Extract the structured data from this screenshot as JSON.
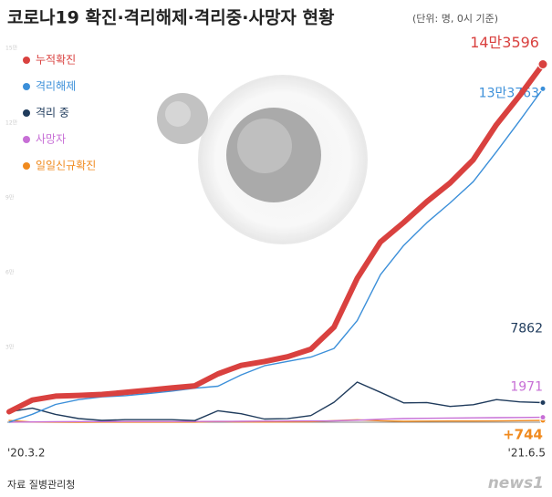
{
  "chart_data": {
    "type": "line",
    "title": "코로나19 확진·격리해제·격리중·사망자 현황",
    "subtitle": "(단위: 명, 0시 기준)",
    "source": "자료 질병관리청",
    "watermark": "news1",
    "categories": [
      "'20.3.2",
      null,
      null,
      null,
      null,
      null,
      null,
      null,
      null,
      null,
      null,
      null,
      null,
      null,
      null,
      null,
      null,
      null,
      null,
      null,
      null,
      null,
      null,
      "'21.6.5"
    ],
    "ylim": [
      0,
      150000
    ],
    "yticks": [
      {
        "value": 30000,
        "label": "3만"
      },
      {
        "value": 60000,
        "label": "6만"
      },
      {
        "value": 90000,
        "label": "9만"
      },
      {
        "value": 120000,
        "label": "12만"
      },
      {
        "value": 150000,
        "label": "15만"
      }
    ],
    "series": [
      {
        "name": "누적확진",
        "color": "#d9413f",
        "values": [
          4212,
          8897,
          10480,
          10774,
          11142,
          11947,
          12850,
          13771,
          14598,
          19400,
          22783,
          24353,
          26271,
          29311,
          38161,
          57680,
          72340,
          80131,
          88516,
          96017,
          105279,
          119387,
          131061,
          143596
        ],
        "value_labels": [
          null,
          null,
          null,
          null,
          null,
          null,
          null,
          null,
          null,
          null,
          null,
          null,
          null,
          null,
          null,
          null,
          null,
          null,
          null,
          null,
          null,
          null,
          null,
          "14만3596"
        ]
      },
      {
        "name": "격리해제",
        "color": "#3b8fd9",
        "values": [
          31,
          3166,
          7117,
          9072,
          10162,
          10654,
          11537,
          12464,
          13642,
          14461,
          18997,
          22646,
          24395,
          26122,
          29612,
          40763,
          59193,
          70906,
          80048,
          88000,
          96500,
          108500,
          121000,
          133763
        ],
        "value_labels": [
          null,
          null,
          null,
          null,
          null,
          null,
          null,
          null,
          null,
          null,
          null,
          null,
          null,
          null,
          null,
          null,
          null,
          null,
          null,
          null,
          null,
          null,
          null,
          "13만3763"
        ]
      },
      {
        "name": "격리 중",
        "color": "#1f3b5c",
        "values": [
          4159,
          5620,
          3155,
          1454,
          717,
          1016,
          1031,
          1010,
          651,
          4621,
          3419,
          1275,
          1413,
          2688,
          8003,
          16100,
          12000,
          7759,
          7888,
          6335,
          7027,
          9075,
          8158,
          7862
        ]
      },
      {
        "name": "사망자",
        "color": "#c76fd6",
        "values": [
          22,
          111,
          208,
          248,
          263,
          277,
          282,
          296,
          305,
          318,
          367,
          432,
          463,
          501,
          546,
          819,
          1195,
          1466,
          1580,
          1682,
          1756,
          1817,
          1903,
          1971
        ]
      },
      {
        "name": "일일신규확진",
        "color": "#f08a1e",
        "values": [
          686,
          64,
          30,
          9,
          20,
          50,
          42,
          26,
          36,
          299,
          110,
          69,
          103,
          230,
          615,
          970,
          580,
          370,
          440,
          469,
          477,
          512,
          610,
          744
        ],
        "value_labels": [
          null,
          null,
          null,
          null,
          null,
          null,
          null,
          null,
          null,
          null,
          null,
          null,
          null,
          null,
          null,
          null,
          null,
          null,
          null,
          null,
          null,
          null,
          null,
          "+744"
        ]
      }
    ]
  }
}
